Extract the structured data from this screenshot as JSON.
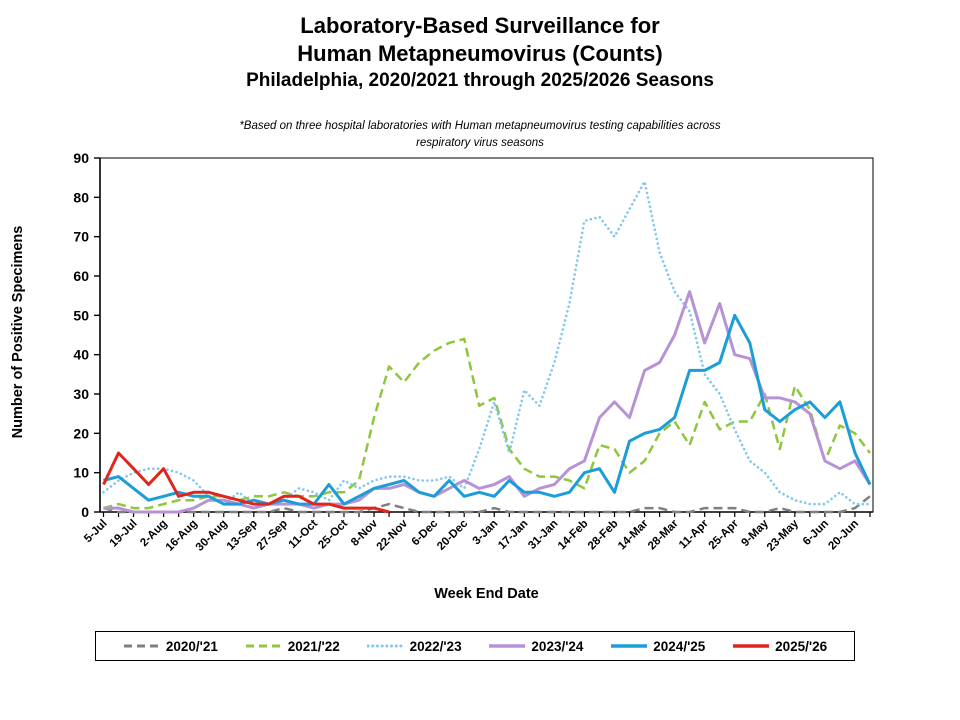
{
  "header": {
    "title_line1": "Laboratory-Based Surveillance for",
    "title_line2": "Human Metapneumovirus (Counts)",
    "title_line3": "Philadelphia, 2020/2021 through 2025/2026 Seasons",
    "note_line1": "*Based on three hospital laboratories with Human metapneumovirus testing capabilities across",
    "note_line2": "respiratory virus seasons"
  },
  "chart_data": {
    "type": "line",
    "title": "Laboratory-Based Surveillance for Human Metapneumovirus (Counts), Philadelphia, 2020/2021 through 2025/2026 Seasons",
    "xlabel": "Week End Date",
    "ylabel": "Number of Positive Specimens",
    "ylim": [
      0,
      90
    ],
    "ytick_step": 10,
    "grid": false,
    "legend_position": "bottom",
    "weeks_total": 52,
    "x_tick_labels": [
      "5-Jul",
      "19-Jul",
      "2-Aug",
      "16-Aug",
      "30-Aug",
      "13-Sep",
      "27-Sep",
      "11-Oct",
      "25-Oct",
      "8-Nov",
      "22-Nov",
      "6-Dec",
      "20-Dec",
      "3-Jan",
      "17-Jan",
      "31-Jan",
      "14-Feb",
      "28-Feb",
      "14-Mar",
      "28-Mar",
      "11-Apr",
      "25-Apr",
      "9-May",
      "23-May",
      "6-Jun",
      "20-Jun"
    ],
    "series": [
      {
        "name": "2020/'21",
        "style": "dashed",
        "color": "#7F7F7F",
        "values": [
          1,
          0,
          0,
          0,
          0,
          0,
          0,
          0,
          0,
          0,
          0,
          0,
          1,
          0,
          0,
          0,
          0,
          0,
          1,
          2,
          1,
          0,
          0,
          0,
          0,
          0,
          1,
          0,
          0,
          0,
          0,
          0,
          0,
          0,
          0,
          0,
          1,
          1,
          0,
          0,
          1,
          1,
          1,
          0,
          0,
          1,
          0,
          0,
          0,
          0,
          1,
          4
        ]
      },
      {
        "name": "2021/'22",
        "style": "dashed",
        "color": "#8EC63F",
        "values": [
          1,
          2,
          1,
          1,
          2,
          3,
          3,
          4,
          4,
          3,
          4,
          4,
          5,
          4,
          4,
          5,
          5,
          8,
          24,
          37,
          33,
          38,
          41,
          43,
          44,
          27,
          29,
          16,
          11,
          9,
          9,
          8,
          6,
          17,
          16,
          10,
          13,
          20,
          23,
          17,
          28,
          21,
          23,
          23,
          30,
          16,
          32,
          26,
          13,
          22,
          20,
          15
        ]
      },
      {
        "name": "2022/'23",
        "style": "dotted",
        "color": "#82C8EC",
        "values": [
          5,
          8,
          10,
          11,
          11,
          10,
          8,
          4,
          2,
          5,
          2,
          2,
          3,
          6,
          5,
          3,
          8,
          6,
          8,
          9,
          9,
          8,
          8,
          9,
          6,
          16,
          28,
          15,
          31,
          27,
          38,
          53,
          74,
          75,
          70,
          77,
          84,
          66,
          56,
          51,
          35,
          30,
          21,
          13,
          10,
          5,
          3,
          2,
          2,
          5,
          2,
          2
        ]
      },
      {
        "name": "2023/'24",
        "style": "solid",
        "color": "#B793D6",
        "values": [
          1,
          1,
          0,
          0,
          0,
          0,
          1,
          3,
          3,
          2,
          1,
          2,
          2,
          2,
          1,
          2,
          2,
          3,
          6,
          6,
          7,
          5,
          4,
          6,
          8,
          6,
          7,
          9,
          4,
          6,
          7,
          11,
          13,
          24,
          28,
          24,
          36,
          38,
          45,
          56,
          43,
          53,
          40,
          39,
          29,
          29,
          28,
          25,
          13,
          11,
          13,
          7
        ]
      },
      {
        "name": "2024/'25",
        "style": "solid",
        "color": "#1B9DD9",
        "values": [
          8,
          9,
          6,
          3,
          4,
          5,
          4,
          4,
          2,
          2,
          3,
          2,
          3,
          2,
          2,
          7,
          2,
          4,
          6,
          7,
          8,
          5,
          4,
          8,
          4,
          5,
          4,
          8,
          5,
          5,
          4,
          5,
          10,
          11,
          5,
          18,
          20,
          21,
          24,
          36,
          36,
          38,
          50,
          43,
          26,
          23,
          26,
          28,
          24,
          28,
          15,
          7
        ]
      },
      {
        "name": "2025/'26",
        "style": "solid",
        "color": "#E1251B",
        "values": [
          7,
          15,
          11,
          7,
          11,
          4,
          5,
          5,
          4,
          3,
          2,
          2,
          4,
          4,
          2,
          2,
          1,
          1,
          1,
          0
        ]
      }
    ]
  }
}
